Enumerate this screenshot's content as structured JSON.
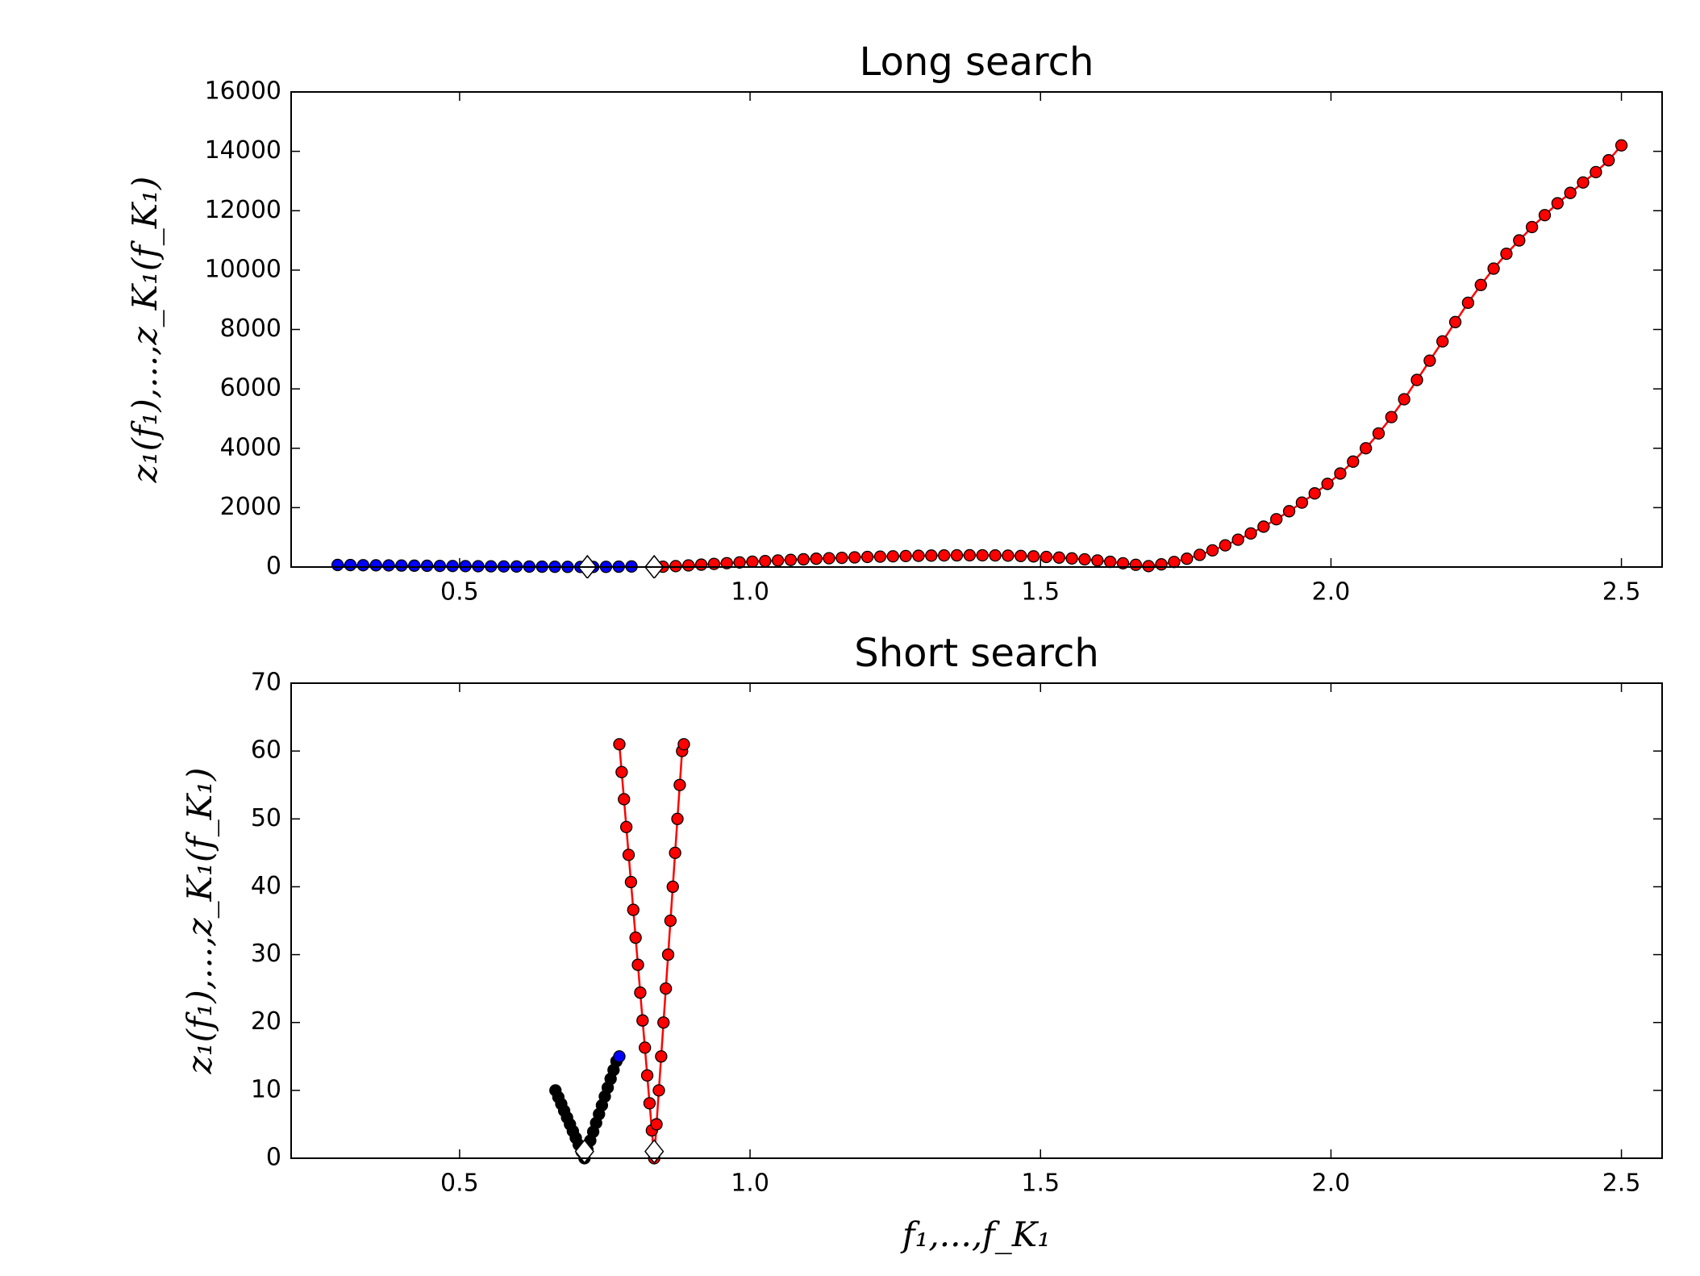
{
  "chart_data": [
    {
      "type": "line",
      "title": "Long search",
      "ylabel": "z₁(f₁),...,z_K₁(f_K₁)",
      "xlim": [
        0.21,
        2.57
      ],
      "ylim": [
        0,
        16000
      ],
      "xticks": [
        {
          "value": 0.5,
          "label": "0.5"
        },
        {
          "value": 1,
          "label": "1.0"
        },
        {
          "value": 1.5,
          "label": "1.5"
        },
        {
          "value": 2,
          "label": "2.0"
        },
        {
          "value": 2.5,
          "label": "2.5"
        }
      ],
      "yticks": [
        0,
        2000,
        4000,
        6000,
        8000,
        10000,
        12000,
        14000,
        16000
      ],
      "series": [
        {
          "color": "#0000ff",
          "marker": "o",
          "x": [
            0.29,
            0.312,
            0.334,
            0.356,
            0.378,
            0.4,
            0.422,
            0.444,
            0.466,
            0.488,
            0.51,
            0.532,
            0.554,
            0.576,
            0.598,
            0.62,
            0.642,
            0.664,
            0.686,
            0.708,
            0.73,
            0.752,
            0.774,
            0.796
          ],
          "values": [
            70,
            66,
            62,
            58,
            54,
            50,
            46,
            42,
            38,
            34,
            30,
            27,
            24,
            21,
            18,
            15,
            12,
            9,
            6,
            3,
            3,
            6,
            12,
            18
          ]
        },
        {
          "color": "#ff0000",
          "marker": "o",
          "x": [
            0.85,
            0.872,
            0.894,
            0.916,
            0.938,
            0.96,
            0.982,
            1.004,
            1.026,
            1.048,
            1.07,
            1.092,
            1.114,
            1.136,
            1.158,
            1.18,
            1.202,
            1.224,
            1.246,
            1.268,
            1.29,
            1.312,
            1.334,
            1.356,
            1.378,
            1.4,
            1.422,
            1.444,
            1.466,
            1.488,
            1.51,
            1.532,
            1.554,
            1.576,
            1.598,
            1.62,
            1.642,
            1.664,
            1.686,
            1.708,
            1.73,
            1.752,
            1.774,
            1.796,
            1.818,
            1.84,
            1.862,
            1.884,
            1.906,
            1.928,
            1.95,
            1.972,
            1.994,
            2.016,
            2.038,
            2.06,
            2.082,
            2.104,
            2.126,
            2.148,
            2.17,
            2.192,
            2.214,
            2.236,
            2.258,
            2.28,
            2.302,
            2.324,
            2.346,
            2.368,
            2.39,
            2.412,
            2.434,
            2.456,
            2.478,
            2.5
          ],
          "values": [
            10,
            30,
            55,
            80,
            105,
            130,
            155,
            180,
            200,
            220,
            240,
            260,
            280,
            295,
            310,
            325,
            340,
            350,
            360,
            370,
            378,
            385,
            390,
            393,
            395,
            394,
            390,
            383,
            372,
            358,
            340,
            318,
            290,
            258,
            220,
            175,
            125,
            75,
            30,
            90,
            170,
            280,
            410,
            560,
            730,
            920,
            1130,
            1360,
            1610,
            1880,
            2170,
            2480,
            2800,
            3150,
            3550,
            4000,
            4500,
            5050,
            5650,
            6300,
            6950,
            7600,
            8250,
            8900,
            9500,
            10050,
            10550,
            11000,
            11450,
            11850,
            12250,
            12600,
            12950,
            13300,
            13700,
            14200
          ]
        },
        {
          "color": "#ffffff",
          "marker": "D",
          "x": [
            0.72,
            0.835
          ],
          "values": [
            0,
            0
          ]
        }
      ]
    },
    {
      "type": "line",
      "title": "Short search",
      "ylabel": "z₁(f₁),...,z_K₁(f_K₁)",
      "xlabel": "f₁,...,f_K₁",
      "xlim": [
        0.21,
        2.57
      ],
      "ylim": [
        0,
        70
      ],
      "xticks": [
        {
          "value": 0.5,
          "label": "0.5"
        },
        {
          "value": 1,
          "label": "1.0"
        },
        {
          "value": 1.5,
          "label": "1.5"
        },
        {
          "value": 2,
          "label": "2.0"
        },
        {
          "value": 2.5,
          "label": "2.5"
        }
      ],
      "yticks": [
        0,
        10,
        20,
        30,
        40,
        50,
        60,
        70
      ],
      "series": [
        {
          "color": "#000000",
          "marker": "o",
          "x": [
            0.665,
            0.67,
            0.675,
            0.68,
            0.685,
            0.69,
            0.695,
            0.7,
            0.705,
            0.71,
            0.715,
            0.72,
            0.725,
            0.73,
            0.735,
            0.74,
            0.745,
            0.75,
            0.755,
            0.76,
            0.765,
            0.77
          ],
          "values": [
            10,
            9,
            8,
            7,
            6,
            5,
            4,
            3,
            2,
            1,
            0,
            1.3,
            2.6,
            3.9,
            5.2,
            6.5,
            7.8,
            9.1,
            10.4,
            11.7,
            13,
            14.3
          ]
        },
        {
          "color": "#0000ff",
          "marker": "o",
          "x": [
            0.775
          ],
          "values": [
            15
          ]
        },
        {
          "color": "#ff0000",
          "marker": "o",
          "x": [
            0.775,
            0.779,
            0.783,
            0.787,
            0.791,
            0.795,
            0.799,
            0.803,
            0.807,
            0.811,
            0.815,
            0.819,
            0.823,
            0.827,
            0.831,
            0.835,
            0.839,
            0.843,
            0.847,
            0.851,
            0.855,
            0.859,
            0.863,
            0.867,
            0.871,
            0.875,
            0.879,
            0.883,
            0.886
          ],
          "values": [
            61,
            56.9,
            52.9,
            48.8,
            44.7,
            40.7,
            36.6,
            32.5,
            28.5,
            24.4,
            20.3,
            16.3,
            12.2,
            8.1,
            4.1,
            0,
            5,
            10,
            15,
            20,
            25,
            30,
            35,
            40,
            45,
            50,
            55,
            60,
            61
          ]
        },
        {
          "color": "#ffffff",
          "marker": "D",
          "x": [
            0.715,
            0.835
          ],
          "values": [
            1,
            1
          ]
        }
      ]
    }
  ]
}
